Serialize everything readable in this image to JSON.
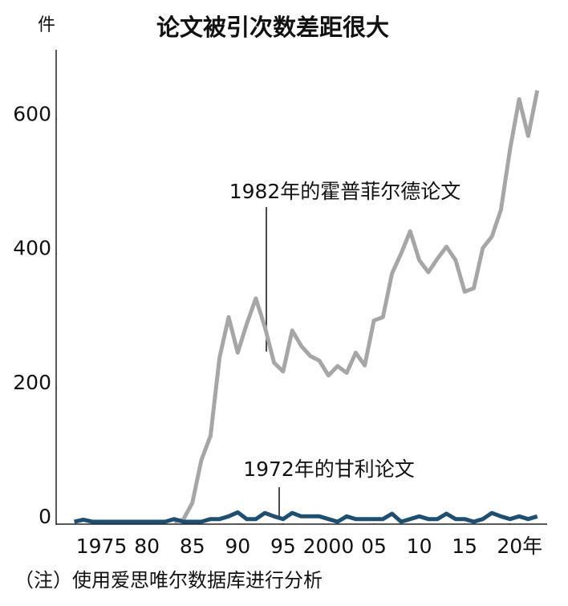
{
  "chart_data": {
    "type": "line",
    "title": "论文被引次数差距很大",
    "y_unit": "件",
    "note": "（注）使用爱思唯尔数据库进行分析",
    "xlim": [
      1970,
      2024
    ],
    "xticks": [
      1975,
      {
        "value": 1980,
        "label": "80"
      },
      {
        "value": 1985,
        "label": "85"
      },
      {
        "value": 1990,
        "label": "90"
      },
      {
        "value": 1995,
        "label": "95"
      },
      2000,
      {
        "value": 2005,
        "label": "05"
      },
      {
        "value": 2010,
        "label": "10"
      },
      {
        "value": 2015,
        "label": "15"
      },
      {
        "value": 2020,
        "label": "20年"
      }
    ],
    "ylim": [
      0,
      700
    ],
    "yticks": [
      0,
      200,
      400,
      600
    ],
    "grid": false,
    "series": [
      {
        "name": "1982年的霍普菲尔德论文",
        "color": "#a6a6a6",
        "x": [
          1983,
          1984,
          1985,
          1986,
          1987,
          1988,
          1989,
          1990,
          1991,
          1992,
          1993,
          1994,
          1995,
          1996,
          1997,
          1998,
          1999,
          2000,
          2001,
          2002,
          2003,
          2004,
          2005,
          2006,
          2007,
          2008,
          2009,
          2010,
          2011,
          2012,
          2013,
          2014,
          2015,
          2016,
          2017,
          2018,
          2019,
          2020,
          2021,
          2022,
          2023
        ],
        "values": [
          0,
          3,
          28,
          92,
          128,
          245,
          305,
          252,
          295,
          333,
          290,
          237,
          224,
          285,
          262,
          247,
          240,
          218,
          232,
          222,
          252,
          233,
          300,
          305,
          370,
          400,
          433,
          390,
          372,
          392,
          410,
          390,
          343,
          348,
          408,
          425,
          465,
          555,
          630,
          575,
          643
        ]
      },
      {
        "name": "1972年的甘利论文",
        "color": "#1d4e73",
        "x": [
          1972,
          1973,
          1974,
          1975,
          1976,
          1977,
          1978,
          1979,
          1980,
          1981,
          1982,
          1983,
          1984,
          1985,
          1986,
          1987,
          1988,
          1989,
          1990,
          1991,
          1992,
          1993,
          1994,
          1995,
          1996,
          1997,
          1998,
          1999,
          2000,
          2001,
          2002,
          2003,
          2004,
          2005,
          2006,
          2007,
          2008,
          2009,
          2010,
          2011,
          2012,
          2013,
          2014,
          2015,
          2016,
          2017,
          2018,
          2019,
          2020,
          2021,
          2022,
          2023
        ],
        "values": [
          0,
          3,
          0,
          0,
          0,
          0,
          0,
          0,
          0,
          0,
          0,
          4,
          0,
          0,
          0,
          4,
          4,
          8,
          14,
          4,
          4,
          13,
          8,
          4,
          13,
          8,
          8,
          8,
          4,
          0,
          8,
          4,
          4,
          4,
          4,
          12,
          0,
          4,
          8,
          4,
          4,
          12,
          4,
          4,
          0,
          4,
          13,
          8,
          4,
          8,
          4,
          8
        ]
      }
    ]
  }
}
